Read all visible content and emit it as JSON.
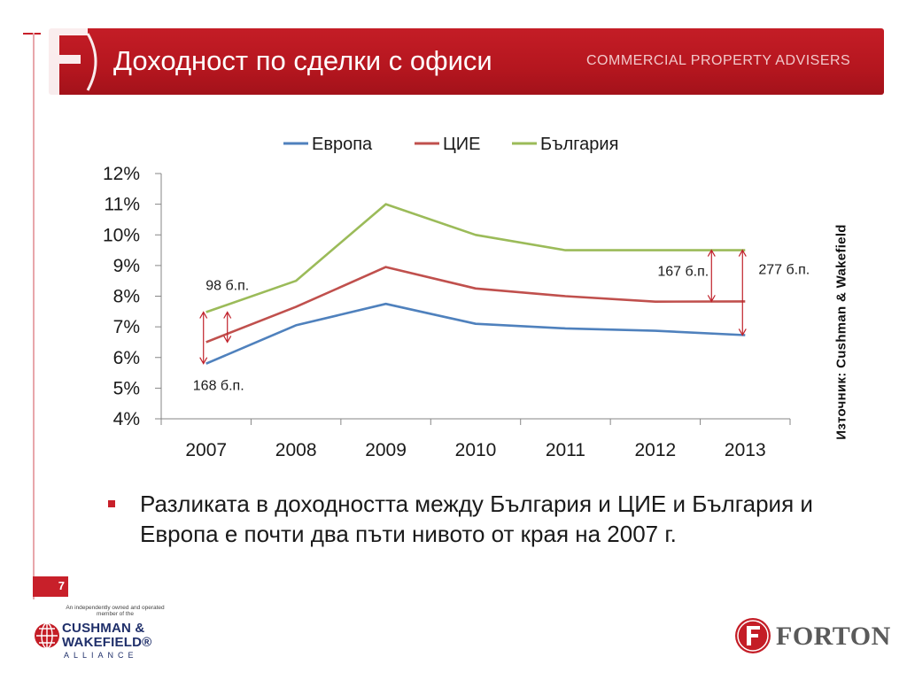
{
  "header": {
    "title": "Доходност по сделки с офиси",
    "tagline": "COMMERCIAL PROPERTY ADVISERS"
  },
  "chart_data": {
    "type": "line",
    "categories": [
      "2007",
      "2008",
      "2009",
      "2010",
      "2011",
      "2012",
      "2013"
    ],
    "series": [
      {
        "name": "Европа",
        "color": "#4f81bd",
        "values": [
          5.8,
          7.05,
          7.75,
          7.1,
          6.95,
          6.87,
          6.73
        ]
      },
      {
        "name": "ЦИЕ",
        "color": "#c0504d",
        "values": [
          6.5,
          7.65,
          8.95,
          8.25,
          8.0,
          7.82,
          7.83
        ]
      },
      {
        "name": "България",
        "color": "#9bbb59",
        "values": [
          7.48,
          8.5,
          11.0,
          10.0,
          9.5,
          9.5,
          9.5
        ]
      }
    ],
    "y_ticks": [
      "4%",
      "5%",
      "6%",
      "7%",
      "8%",
      "9%",
      "10%",
      "11%",
      "12%"
    ],
    "ylim": [
      4,
      12
    ],
    "legend_position": "top",
    "grid": false,
    "annotations": [
      {
        "text": "98 б.п.",
        "category": "2007",
        "from": 6.5,
        "to": 7.48
      },
      {
        "text": "168 б.п.",
        "category": "2007",
        "from": 5.8,
        "to": 7.48
      },
      {
        "text": "167 б.п.",
        "category": "2013",
        "from": 7.83,
        "to": 9.5
      },
      {
        "text": "277 б.п.",
        "category": "2013",
        "from": 6.73,
        "to": 9.5
      }
    ],
    "annotation_color": "#c0202a"
  },
  "source": "Източник: Cushman & Wakefield",
  "bullet": {
    "text": "Разликата в доходността между България и ЦИЕ и България и Европа е почти два пъти нивото от края на 2007 г.",
    "marker_color": "#c8202a"
  },
  "page_number": "7",
  "footer": {
    "cw_tagline": "An independently owned and operated member of the",
    "cw_name_line1": "CUSHMAN &",
    "cw_name_line2": "WAKEFIELD®",
    "cw_alliance": "ALLIANCE",
    "forton": "FORTON"
  },
  "colors": {
    "brand_red": "#c41d26"
  }
}
